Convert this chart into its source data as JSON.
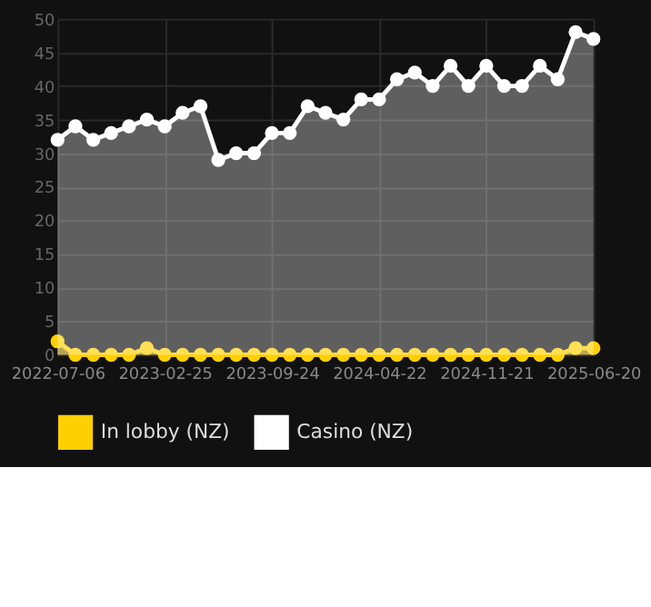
{
  "chart_data": {
    "type": "area",
    "categories": [
      "2022-07-06",
      null,
      null,
      null,
      null,
      null,
      "2023-02-25",
      null,
      null,
      null,
      null,
      null,
      "2023-09-24",
      null,
      null,
      null,
      null,
      null,
      "2024-04-22",
      null,
      null,
      null,
      null,
      null,
      "2024-11-21",
      null,
      null,
      null,
      null,
      null,
      "2025-06-20"
    ],
    "series": [
      {
        "name": "In lobby (NZ)",
        "color": "#ffd000",
        "values": [
          2,
          0,
          0,
          0,
          0,
          1,
          0,
          0,
          0,
          0,
          0,
          0,
          0,
          0,
          0,
          0,
          0,
          0,
          0,
          0,
          0,
          0,
          0,
          0,
          0,
          0,
          0,
          0,
          0,
          1,
          1
        ]
      },
      {
        "name": "Casino (NZ)",
        "color": "#ffffff",
        "values": [
          32,
          34,
          32,
          33,
          34,
          35,
          34,
          36,
          37,
          29,
          30,
          30,
          33,
          33,
          37,
          36,
          35,
          38,
          38,
          41,
          42,
          40,
          43,
          40,
          43,
          40,
          40,
          43,
          41,
          48,
          47
        ]
      }
    ],
    "ylim": [
      0,
      50
    ],
    "yticks": [
      0,
      5,
      10,
      15,
      20,
      25,
      30,
      35,
      40,
      45,
      50
    ],
    "grid": true,
    "legend": "bottom",
    "marker": "circle"
  }
}
